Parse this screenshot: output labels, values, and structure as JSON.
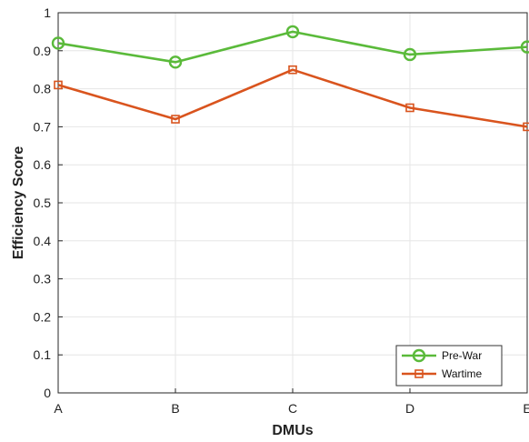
{
  "chart_data": {
    "type": "line",
    "categories": [
      "A",
      "B",
      "C",
      "D",
      "E"
    ],
    "series": [
      {
        "name": "Pre-War",
        "values": [
          0.92,
          0.87,
          0.95,
          0.89,
          0.91
        ],
        "color": "#5aba3a",
        "marker": "circle"
      },
      {
        "name": "Wartime",
        "values": [
          0.81,
          0.72,
          0.85,
          0.75,
          0.7
        ],
        "color": "#d9541e",
        "marker": "square"
      }
    ],
    "xlabel": "DMUs",
    "ylabel": "Efficiency Score",
    "ylim": [
      0,
      1
    ],
    "yticks": [
      "0",
      "0.1",
      "0.2",
      "0.3",
      "0.4",
      "0.5",
      "0.6",
      "0.7",
      "0.8",
      "0.9",
      "1"
    ],
    "ytick_values": [
      0,
      0.1,
      0.2,
      0.3,
      0.4,
      0.5,
      0.6,
      0.7,
      0.8,
      0.9,
      1
    ],
    "grid": true,
    "legend_position": "bottom-right"
  }
}
